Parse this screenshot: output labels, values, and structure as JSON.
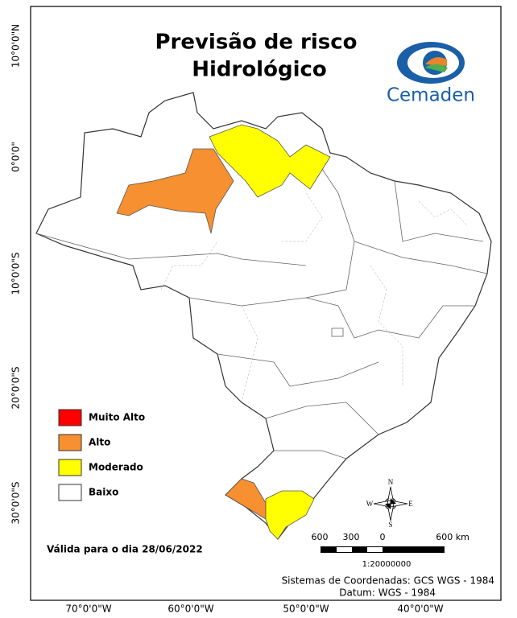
{
  "header": {
    "title_lines": [
      "Previsão de risco",
      "Hidrológico"
    ],
    "logo_text": "Cemaden"
  },
  "legend": {
    "items": [
      {
        "label": "Muito Alto",
        "color": "#ff0000"
      },
      {
        "label": "Alto",
        "color": "#f79030"
      },
      {
        "label": "Moderado",
        "color": "#ffff00"
      },
      {
        "label": "Baixo",
        "color": "#ffffff"
      }
    ]
  },
  "validity": "Válida para o dia 28/06/2022",
  "scale": {
    "labels": [
      "600",
      "300",
      "0",
      "600 km"
    ],
    "ratio": "1:20000000"
  },
  "compass": {
    "n": "N",
    "s": "S",
    "e": "E",
    "w": "W"
  },
  "graticule": {
    "latitudes": [
      "10°0'0\"N",
      "0°0'0\"",
      "10°0'0\"S",
      "20°0'0\"S",
      "30°0'0\"S"
    ],
    "longitudes": [
      "70°0'0\"W",
      "60°0'0\"W",
      "50°0'0\"W",
      "40°0'0\"W"
    ]
  },
  "footer": {
    "coordinate_system": "Sistemas de Coordenadas: GCS WGS - 1984",
    "datum": "Datum: WGS - 1984"
  }
}
